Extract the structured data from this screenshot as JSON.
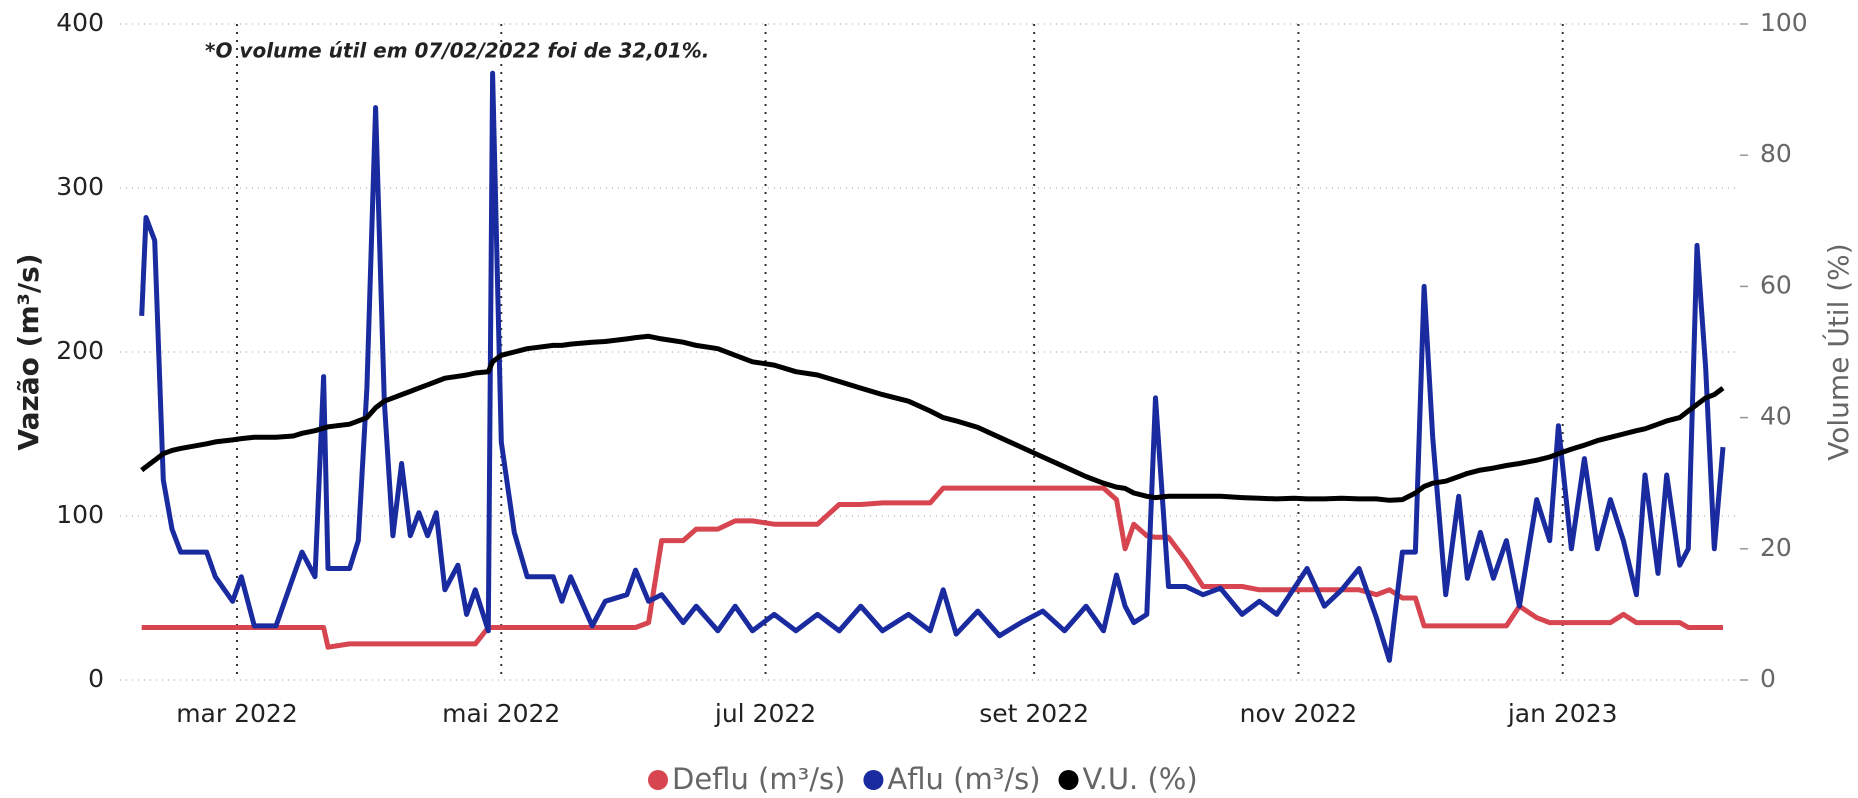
{
  "chart_data": {
    "type": "line",
    "annotation": "*O volume útil em 07/02/2022 foi de 32,01%.",
    "y_label": "Vazão (m³/s)",
    "y2_label": "Volume Útil (%)",
    "xlim": [
      "2022-02-02",
      "2023-02-10"
    ],
    "xticks": [
      {
        "value": "2022-03-01",
        "label": "mar 2022"
      },
      {
        "value": "2022-05-01",
        "label": "mai 2022"
      },
      {
        "value": "2022-07-01",
        "label": "jul 2022"
      },
      {
        "value": "2022-09-01",
        "label": "set 2022"
      },
      {
        "value": "2022-11-01",
        "label": "nov 2022"
      },
      {
        "value": "2023-01-01",
        "label": "jan 2023"
      }
    ],
    "ylim": [
      0,
      400
    ],
    "yticks": [
      0,
      100,
      200,
      300,
      400
    ],
    "y2lim": [
      0,
      100
    ],
    "y2ticks": [
      0,
      20,
      40,
      60,
      80,
      100
    ],
    "grid": true,
    "legend": "bottom",
    "x": [
      "2022-02-07",
      "2022-02-08",
      "2022-02-10",
      "2022-02-12",
      "2022-02-14",
      "2022-02-16",
      "2022-02-22",
      "2022-02-24",
      "2022-02-28",
      "2022-03-02",
      "2022-03-05",
      "2022-03-10",
      "2022-03-14",
      "2022-03-16",
      "2022-03-19",
      "2022-03-21",
      "2022-03-22",
      "2022-03-27",
      "2022-03-29",
      "2022-03-31",
      "2022-04-02",
      "2022-04-04",
      "2022-04-06",
      "2022-04-08",
      "2022-04-10",
      "2022-04-12",
      "2022-04-14",
      "2022-04-16",
      "2022-04-18",
      "2022-04-21",
      "2022-04-23",
      "2022-04-25",
      "2022-04-28",
      "2022-04-29",
      "2022-05-01",
      "2022-05-04",
      "2022-05-07",
      "2022-05-13",
      "2022-05-15",
      "2022-05-17",
      "2022-05-22",
      "2022-05-25",
      "2022-05-30",
      "2022-06-01",
      "2022-06-04",
      "2022-06-07",
      "2022-06-12",
      "2022-06-15",
      "2022-06-20",
      "2022-06-24",
      "2022-06-28",
      "2022-07-03",
      "2022-07-08",
      "2022-07-13",
      "2022-07-18",
      "2022-07-23",
      "2022-07-28",
      "2022-08-03",
      "2022-08-08",
      "2022-08-11",
      "2022-08-14",
      "2022-08-19",
      "2022-08-24",
      "2022-08-29",
      "2022-09-03",
      "2022-09-08",
      "2022-09-13",
      "2022-09-17",
      "2022-09-20",
      "2022-09-22",
      "2022-09-24",
      "2022-09-27",
      "2022-09-29",
      "2022-10-02",
      "2022-10-06",
      "2022-10-10",
      "2022-10-14",
      "2022-10-19",
      "2022-10-23",
      "2022-10-27",
      "2022-10-31",
      "2022-11-03",
      "2022-11-07",
      "2022-11-11",
      "2022-11-15",
      "2022-11-19",
      "2022-11-22",
      "2022-11-25",
      "2022-11-28",
      "2022-11-30",
      "2022-12-02",
      "2022-12-05",
      "2022-12-08",
      "2022-12-10",
      "2022-12-13",
      "2022-12-16",
      "2022-12-19",
      "2022-12-22",
      "2022-12-26",
      "2022-12-29",
      "2022-12-31",
      "2023-01-03",
      "2023-01-06",
      "2023-01-09",
      "2023-01-12",
      "2023-01-15",
      "2023-01-18",
      "2023-01-20",
      "2023-01-23",
      "2023-01-25",
      "2023-01-28",
      "2023-01-30",
      "2023-02-01",
      "2023-02-03",
      "2023-02-05",
      "2023-02-07"
    ],
    "series": [
      {
        "name": "Deflu (m³/s)",
        "color": "#d64550",
        "values": [
          32,
          32,
          32,
          32,
          32,
          32,
          32,
          32,
          32,
          32,
          32,
          32,
          32,
          32,
          32,
          32,
          20,
          22,
          22,
          22,
          22,
          22,
          22,
          22,
          22,
          22,
          22,
          22,
          22,
          22,
          22,
          22,
          32,
          32,
          32,
          32,
          32,
          32,
          32,
          32,
          32,
          32,
          32,
          32,
          35,
          85,
          85,
          92,
          92,
          97,
          97,
          95,
          95,
          95,
          107,
          107,
          108,
          108,
          108,
          117,
          117,
          117,
          117,
          117,
          117,
          117,
          117,
          117,
          110,
          80,
          95,
          88,
          87,
          87,
          73,
          57,
          57,
          57,
          55,
          55,
          55,
          55,
          55,
          55,
          55,
          52,
          55,
          50,
          50,
          33,
          33,
          33,
          33,
          33,
          33,
          33,
          33,
          45,
          38,
          35,
          35,
          35,
          35,
          35,
          35,
          40,
          35,
          35,
          35,
          35,
          35,
          32,
          32,
          32,
          32,
          32
        ]
      },
      {
        "name": "Aflu (m³/s)",
        "color": "#1a2ba0",
        "values": [
          222,
          282,
          268,
          122,
          92,
          78,
          78,
          63,
          48,
          63,
          33,
          33,
          63,
          78,
          63,
          185,
          68,
          68,
          85,
          178,
          349,
          170,
          88,
          132,
          88,
          102,
          88,
          102,
          55,
          70,
          40,
          55,
          30,
          370,
          145,
          90,
          63,
          63,
          48,
          63,
          33,
          48,
          52,
          67,
          48,
          52,
          35,
          45,
          30,
          45,
          30,
          40,
          30,
          40,
          30,
          45,
          30,
          40,
          30,
          55,
          28,
          42,
          27,
          35,
          42,
          30,
          45,
          30,
          64,
          45,
          35,
          40,
          172,
          57,
          57,
          52,
          56,
          40,
          48,
          40,
          56,
          68,
          45,
          55,
          68,
          38,
          12,
          78,
          78,
          240,
          148,
          52,
          112,
          62,
          90,
          62,
          85,
          45,
          110,
          85,
          155,
          80,
          135,
          80,
          110,
          85,
          52,
          125,
          65,
          125,
          70,
          80,
          265,
          190,
          80,
          142
        ]
      },
      {
        "name": "V.U. (%)",
        "color": "#000000",
        "axis": "y2",
        "values": [
          32,
          32.5,
          33.5,
          34.5,
          35,
          35.3,
          36,
          36.3,
          36.6,
          36.8,
          37,
          37,
          37.2,
          37.6,
          38,
          38.4,
          38.6,
          39,
          39.5,
          40,
          41.5,
          42.5,
          43,
          43.5,
          44,
          44.5,
          45,
          45.5,
          46,
          46.3,
          46.5,
          46.8,
          47,
          48.5,
          49.5,
          50,
          50.5,
          51,
          51,
          51.2,
          51.5,
          51.6,
          52,
          52.2,
          52.4,
          52,
          51.5,
          51,
          50.5,
          49.5,
          48.5,
          48,
          47,
          46.5,
          45.5,
          44.5,
          43.5,
          42.5,
          41,
          40,
          39.5,
          38.5,
          37,
          35.5,
          34,
          32.5,
          31,
          30,
          29.4,
          29.2,
          28.5,
          28,
          27.8,
          28,
          28,
          28,
          28,
          27.8,
          27.7,
          27.6,
          27.7,
          27.6,
          27.6,
          27.7,
          27.6,
          27.6,
          27.4,
          27.5,
          28.5,
          29.5,
          30,
          30.3,
          31,
          31.5,
          32,
          32.3,
          32.7,
          33,
          33.5,
          34,
          34.5,
          35.2,
          35.8,
          36.5,
          37,
          37.5,
          38,
          38.3,
          39,
          39.5,
          40,
          41,
          42,
          43,
          43.5,
          44.5
        ]
      }
    ]
  }
}
